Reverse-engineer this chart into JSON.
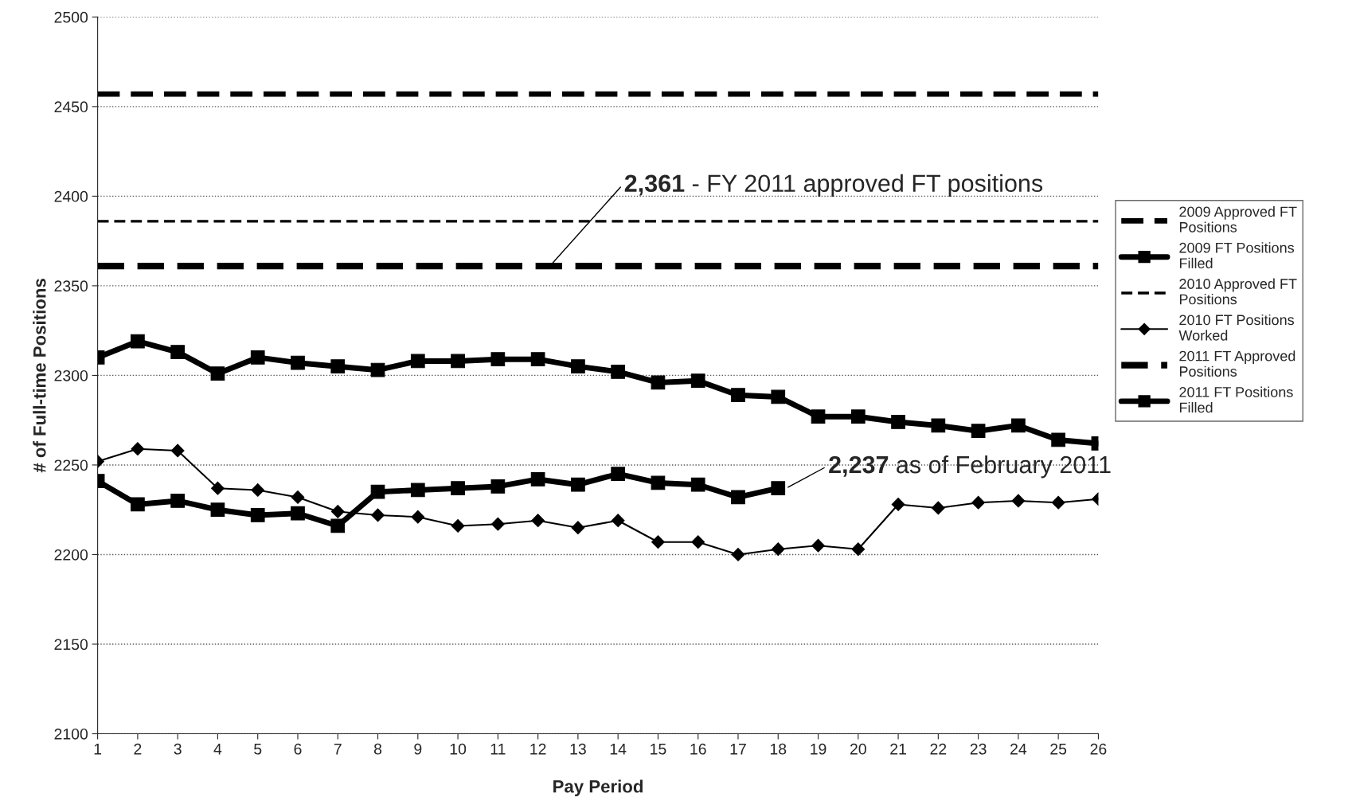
{
  "chart_data": {
    "type": "line",
    "xlabel": "Pay Period",
    "ylabel": "# of Full-time Positions",
    "x": [
      1,
      2,
      3,
      4,
      5,
      6,
      7,
      8,
      9,
      10,
      11,
      12,
      13,
      14,
      15,
      16,
      17,
      18,
      19,
      20,
      21,
      22,
      23,
      24,
      25,
      26
    ],
    "xlim": [
      1,
      26
    ],
    "xticks": [
      1,
      2,
      3,
      4,
      5,
      6,
      7,
      8,
      9,
      10,
      11,
      12,
      13,
      14,
      15,
      16,
      17,
      18,
      19,
      20,
      21,
      22,
      23,
      24,
      25,
      26
    ],
    "ylim": [
      2100,
      2500
    ],
    "yticks": [
      2100,
      2150,
      2200,
      2250,
      2300,
      2350,
      2400,
      2450,
      2500
    ],
    "grid": "y",
    "legend": "right",
    "series": [
      {
        "name": "2009 Approved FT Positions",
        "color": "#000000",
        "line_style": "dashed",
        "marker": "none",
        "values": [
          2457,
          2457,
          2457,
          2457,
          2457,
          2457,
          2457,
          2457,
          2457,
          2457,
          2457,
          2457,
          2457,
          2457,
          2457,
          2457,
          2457,
          2457,
          2457,
          2457,
          2457,
          2457,
          2457,
          2457,
          2457,
          2457
        ]
      },
      {
        "name": "2009 FT Positions Filled",
        "color": "#000000",
        "line_style": "solid",
        "marker": "square",
        "values": [
          2310,
          2319,
          2313,
          2301,
          2310,
          2307,
          2305,
          2303,
          2308,
          2308,
          2309,
          2309,
          2305,
          2302,
          2296,
          2297,
          2289,
          2288,
          2277,
          2277,
          2274,
          2272,
          2269,
          2272,
          2264,
          2262
        ]
      },
      {
        "name": "2010 Approved FT Positions",
        "color": "#000000",
        "line_style": "dashed",
        "marker": "none",
        "values": [
          2386,
          2386,
          2386,
          2386,
          2386,
          2386,
          2386,
          2386,
          2386,
          2386,
          2386,
          2386,
          2386,
          2386,
          2386,
          2386,
          2386,
          2386,
          2386,
          2386,
          2386,
          2386,
          2386,
          2386,
          2386,
          2386
        ]
      },
      {
        "name": "2010 FT Positions Worked",
        "color": "#000000",
        "line_style": "solid",
        "marker": "diamond",
        "values": [
          2252,
          2259,
          2258,
          2237,
          2236,
          2232,
          2224,
          2222,
          2221,
          2216,
          2217,
          2219,
          2215,
          2219,
          2207,
          2207,
          2200,
          2203,
          2205,
          2203,
          2228,
          2226,
          2229,
          2230,
          2229,
          2231
        ]
      },
      {
        "name": "2011 FT Approved Positions",
        "color": "#000000",
        "line_style": "dashed",
        "marker": "none",
        "values": [
          2361,
          2361,
          2361,
          2361,
          2361,
          2361,
          2361,
          2361,
          2361,
          2361,
          2361,
          2361,
          2361,
          2361,
          2361,
          2361,
          2361,
          2361,
          2361,
          2361,
          2361,
          2361,
          2361,
          2361,
          2361,
          2361
        ]
      },
      {
        "name": "2011 FT Positions Filled",
        "color": "#000000",
        "line_style": "solid",
        "marker": "square",
        "values": [
          2241,
          2228,
          2230,
          2225,
          2222,
          2223,
          2216,
          2235,
          2236,
          2237,
          2238,
          2242,
          2239,
          2245,
          2240,
          2239,
          2232,
          2237,
          null,
          null,
          null,
          null,
          null,
          null,
          null,
          null
        ]
      }
    ],
    "annotations": [
      {
        "text": "2,361 - FY 2011 approved FT positions",
        "x": 12.3,
        "y": 2361
      },
      {
        "text": "2,237 as of February 2011",
        "x": 18.2,
        "y": 2237
      }
    ]
  }
}
